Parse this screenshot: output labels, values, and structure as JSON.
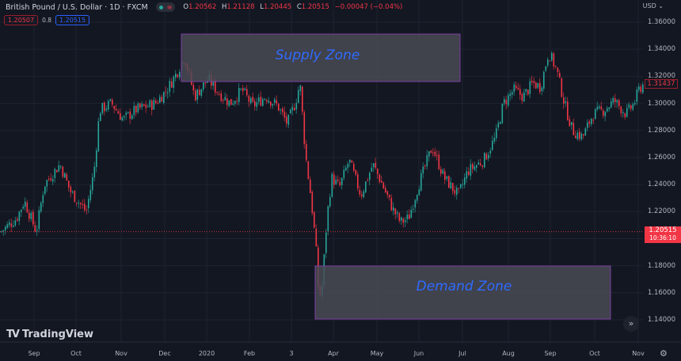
{
  "header": {
    "symbol_title": "British Pound / U.S. Dollar · 1D · FXCM",
    "ohlc": {
      "open_label": "O",
      "open": "1.20562",
      "high_label": "H",
      "high": "1.21128",
      "low_label": "L",
      "low": "1.20445",
      "close_label": "C",
      "close": "1.20515",
      "change": "−0.00047 (−0.04%)"
    },
    "bid": "1.20507",
    "spread": "0.8",
    "ask": "1.20515"
  },
  "price_axis": {
    "currency": "USD",
    "labels": [
      "1.36000",
      "1.34000",
      "1.32000",
      "1.30000",
      "1.28000",
      "1.26000",
      "1.24000",
      "1.22000",
      "1.18000",
      "1.16000",
      "1.14000"
    ],
    "last_visible_tag": "1.31437",
    "current_price_tag": "1.20515",
    "countdown": "10:36:10"
  },
  "time_axis": {
    "labels": [
      "Sep",
      "Oct",
      "Nov",
      "Dec",
      "2020",
      "Feb",
      "3",
      "Apr",
      "May",
      "Jun",
      "Jul",
      "Aug",
      "Sep",
      "Oct",
      "Nov"
    ]
  },
  "zones": {
    "supply_label": "Supply Zone",
    "demand_label": "Demand Zone"
  },
  "branding": {
    "logo_text": "TradingView"
  },
  "colors": {
    "background": "#131722",
    "up": "#26a69a",
    "down": "#f23645",
    "zone_fill": "#4a4c55",
    "zone_border": "#7b3fa0",
    "zone_text": "#2f6bff",
    "grid": "#1f2330"
  },
  "chart_data": {
    "type": "candlestick",
    "title": "British Pound / U.S. Dollar · 1D · FXCM",
    "xlabel": "",
    "ylabel": "USD",
    "ylim": [
      1.13,
      1.365
    ],
    "x_ticks": [
      "Sep",
      "Oct",
      "Nov",
      "Dec",
      "2020",
      "Feb",
      "3",
      "Apr",
      "May",
      "Jun",
      "Jul",
      "Aug",
      "Sep",
      "Oct",
      "Nov"
    ],
    "y_ticks": [
      1.14,
      1.16,
      1.18,
      1.22,
      1.24,
      1.26,
      1.28,
      1.3,
      1.32,
      1.34,
      1.36
    ],
    "annotations": [
      {
        "type": "rect",
        "label": "Supply Zone",
        "price_top": 1.35,
        "price_bottom": 1.316,
        "start": "mid-Dec 2019",
        "end": "Jul 2020"
      },
      {
        "type": "rect",
        "label": "Demand Zone",
        "price_top": 1.178,
        "price_bottom": 1.141,
        "start": "mid-Mar 2020",
        "end": "mid-Oct 2020"
      }
    ],
    "current_price": 1.20515,
    "approx_monthly_closes": {
      "x": [
        "Sep",
        "Oct",
        "Nov",
        "Dec",
        "Jan",
        "Feb",
        "Mar",
        "Apr",
        "May",
        "Jun",
        "Jul",
        "Aug",
        "Sep",
        "Oct",
        "Nov"
      ],
      "close": [
        1.23,
        1.295,
        1.295,
        1.31,
        1.305,
        1.29,
        1.16,
        1.245,
        1.215,
        1.245,
        1.275,
        1.32,
        1.32,
        1.285,
        1.314
      ]
    }
  },
  "controls": {
    "scroll_to_realtime": "»",
    "settings": "⚙"
  }
}
